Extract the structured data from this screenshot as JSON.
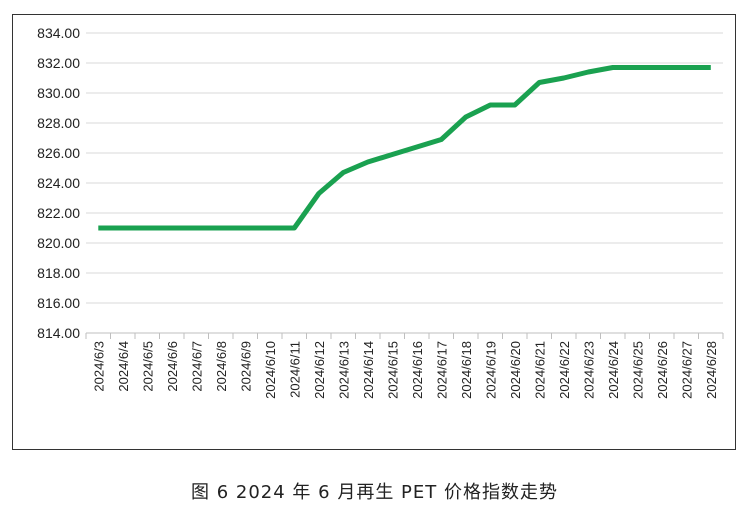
{
  "caption": "图 6  2024 年 6 月再生 PET 价格指数走势",
  "chart_data": {
    "type": "line",
    "title": "",
    "xlabel": "",
    "ylabel": "",
    "ylim": [
      814,
      834
    ],
    "ytick_step": 2,
    "ytick_labels": [
      "814.00",
      "816.00",
      "818.00",
      "820.00",
      "822.00",
      "824.00",
      "826.00",
      "828.00",
      "830.00",
      "832.00",
      "834.00"
    ],
    "grid": "horizontal",
    "legend": "none",
    "line_color": "#1aa150",
    "categories": [
      "2024/6/3",
      "2024/6/4",
      "2024/6/5",
      "2024/6/6",
      "2024/6/7",
      "2024/6/8",
      "2024/6/9",
      "2024/6/10",
      "2024/6/11",
      "2024/6/12",
      "2024/6/13",
      "2024/6/14",
      "2024/6/15",
      "2024/6/16",
      "2024/6/17",
      "2024/6/18",
      "2024/6/19",
      "2024/6/20",
      "2024/6/21",
      "2024/6/22",
      "2024/6/23",
      "2024/6/24",
      "2024/6/25",
      "2024/6/26",
      "2024/6/27",
      "2024/6/28"
    ],
    "series": [
      {
        "values": [
          821.0,
          821.0,
          821.0,
          821.0,
          821.0,
          821.0,
          821.0,
          821.0,
          821.0,
          823.3,
          824.7,
          825.4,
          825.9,
          826.4,
          826.9,
          828.4,
          829.2,
          829.2,
          830.7,
          831.0,
          831.4,
          831.7,
          831.7,
          831.7,
          831.7,
          831.7
        ]
      }
    ]
  }
}
